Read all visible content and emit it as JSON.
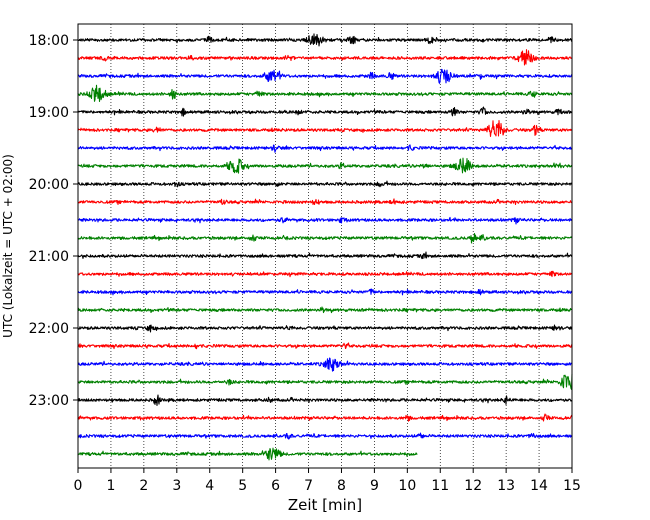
{
  "chart_data": {
    "type": "line",
    "title": "",
    "xlabel": "Zeit  [min]",
    "ylabel": "UTC (Lokalzeit = UTC + 02:00)",
    "xlim": [
      0,
      15
    ],
    "x_ticks": [
      "0",
      "1",
      "2",
      "3",
      "4",
      "5",
      "6",
      "7",
      "8",
      "9",
      "10",
      "11",
      "12",
      "13",
      "14",
      "15"
    ],
    "y_tick_labels": [
      "18:00",
      "19:00",
      "20:00",
      "21:00",
      "22:00",
      "23:00"
    ],
    "grid": "vertical dotted",
    "trace_colors": [
      "#000000",
      "#ff0000",
      "#0000ff",
      "#008000"
    ],
    "series": [
      {
        "start": "18:00",
        "color": "#000000",
        "end_min": 15,
        "events": [
          [
            4,
            2
          ],
          [
            7.2,
            6
          ],
          [
            8.3,
            5
          ],
          [
            10.7,
            3
          ],
          [
            14.4,
            2
          ]
        ]
      },
      {
        "start": "18:15",
        "color": "#ff0000",
        "end_min": 15,
        "events": [
          [
            0.8,
            2
          ],
          [
            3.4,
            2
          ],
          [
            6.4,
            3
          ],
          [
            13.6,
            7
          ]
        ]
      },
      {
        "start": "18:30",
        "color": "#0000ff",
        "end_min": 15,
        "events": [
          [
            5.9,
            6
          ],
          [
            8.9,
            3
          ],
          [
            9.5,
            3
          ],
          [
            11.1,
            8
          ],
          [
            12.2,
            2
          ]
        ]
      },
      {
        "start": "18:45",
        "color": "#008000",
        "end_min": 15,
        "events": [
          [
            0.6,
            8
          ],
          [
            2.9,
            5
          ],
          [
            5.5,
            3
          ],
          [
            13.8,
            3
          ]
        ]
      },
      {
        "start": "19:00",
        "color": "#000000",
        "end_min": 15,
        "events": [
          [
            3.2,
            3
          ],
          [
            6.7,
            2
          ],
          [
            11.4,
            5
          ],
          [
            12.3,
            4
          ],
          [
            13.6,
            3
          ],
          [
            14.6,
            3
          ]
        ]
      },
      {
        "start": "19:15",
        "color": "#ff0000",
        "end_min": 15,
        "events": [
          [
            2.4,
            3
          ],
          [
            12.7,
            10
          ],
          [
            13.9,
            5
          ]
        ]
      },
      {
        "start": "19:30",
        "color": "#0000ff",
        "end_min": 15,
        "events": [
          [
            6,
            3
          ],
          [
            10.1,
            2
          ]
        ]
      },
      {
        "start": "19:45",
        "color": "#008000",
        "end_min": 15,
        "events": [
          [
            4.8,
            7
          ],
          [
            8,
            2
          ],
          [
            10.5,
            2
          ],
          [
            11.7,
            7
          ],
          [
            14.6,
            2
          ]
        ]
      },
      {
        "start": "20:00",
        "color": "#000000",
        "end_min": 15,
        "events": [
          [
            3,
            2
          ],
          [
            6,
            2
          ],
          [
            9.2,
            3
          ]
        ]
      },
      {
        "start": "20:15",
        "color": "#ff0000",
        "end_min": 15,
        "events": [
          [
            4.4,
            2
          ],
          [
            7.2,
            2
          ],
          [
            9.6,
            2
          ]
        ]
      },
      {
        "start": "20:30",
        "color": "#0000ff",
        "end_min": 15,
        "events": [
          [
            6.2,
            2
          ],
          [
            8,
            2
          ],
          [
            13.3,
            2
          ]
        ]
      },
      {
        "start": "20:45",
        "color": "#008000",
        "end_min": 15,
        "events": [
          [
            5.3,
            3
          ],
          [
            12,
            5
          ],
          [
            12.3,
            2
          ]
        ]
      },
      {
        "start": "21:00",
        "color": "#000000",
        "end_min": 15,
        "events": [
          [
            10.5,
            2
          ]
        ]
      },
      {
        "start": "21:15",
        "color": "#ff0000",
        "end_min": 15,
        "events": [
          [
            14.4,
            2
          ]
        ]
      },
      {
        "start": "21:30",
        "color": "#0000ff",
        "end_min": 15,
        "events": [
          [
            8.9,
            2
          ],
          [
            12.2,
            2
          ]
        ]
      },
      {
        "start": "21:45",
        "color": "#008000",
        "end_min": 15,
        "events": [
          [
            7.4,
            2
          ]
        ]
      },
      {
        "start": "22:00",
        "color": "#000000",
        "end_min": 15,
        "events": [
          [
            2.2,
            3
          ],
          [
            6.4,
            2
          ],
          [
            14.5,
            2
          ]
        ]
      },
      {
        "start": "22:15",
        "color": "#ff0000",
        "end_min": 15,
        "events": [
          [
            3.6,
            2
          ],
          [
            8.1,
            2
          ]
        ]
      },
      {
        "start": "22:30",
        "color": "#0000ff",
        "end_min": 15,
        "events": [
          [
            7.7,
            6
          ]
        ]
      },
      {
        "start": "22:45",
        "color": "#008000",
        "end_min": 15,
        "events": [
          [
            4.6,
            2
          ],
          [
            14.9,
            9
          ]
        ]
      },
      {
        "start": "23:00",
        "color": "#000000",
        "end_min": 15,
        "events": [
          [
            2.4,
            5
          ],
          [
            5.8,
            2
          ],
          [
            13,
            3
          ]
        ]
      },
      {
        "start": "23:15",
        "color": "#ff0000",
        "end_min": 15,
        "events": [
          [
            10,
            2
          ],
          [
            14.2,
            3
          ]
        ]
      },
      {
        "start": "23:30",
        "color": "#0000ff",
        "end_min": 15,
        "events": [
          [
            6.4,
            2
          ],
          [
            10.4,
            2
          ],
          [
            13.8,
            2
          ]
        ]
      },
      {
        "start": "23:45",
        "color": "#008000",
        "end_min": 10.3,
        "events": [
          [
            5.9,
            6
          ]
        ]
      }
    ]
  }
}
